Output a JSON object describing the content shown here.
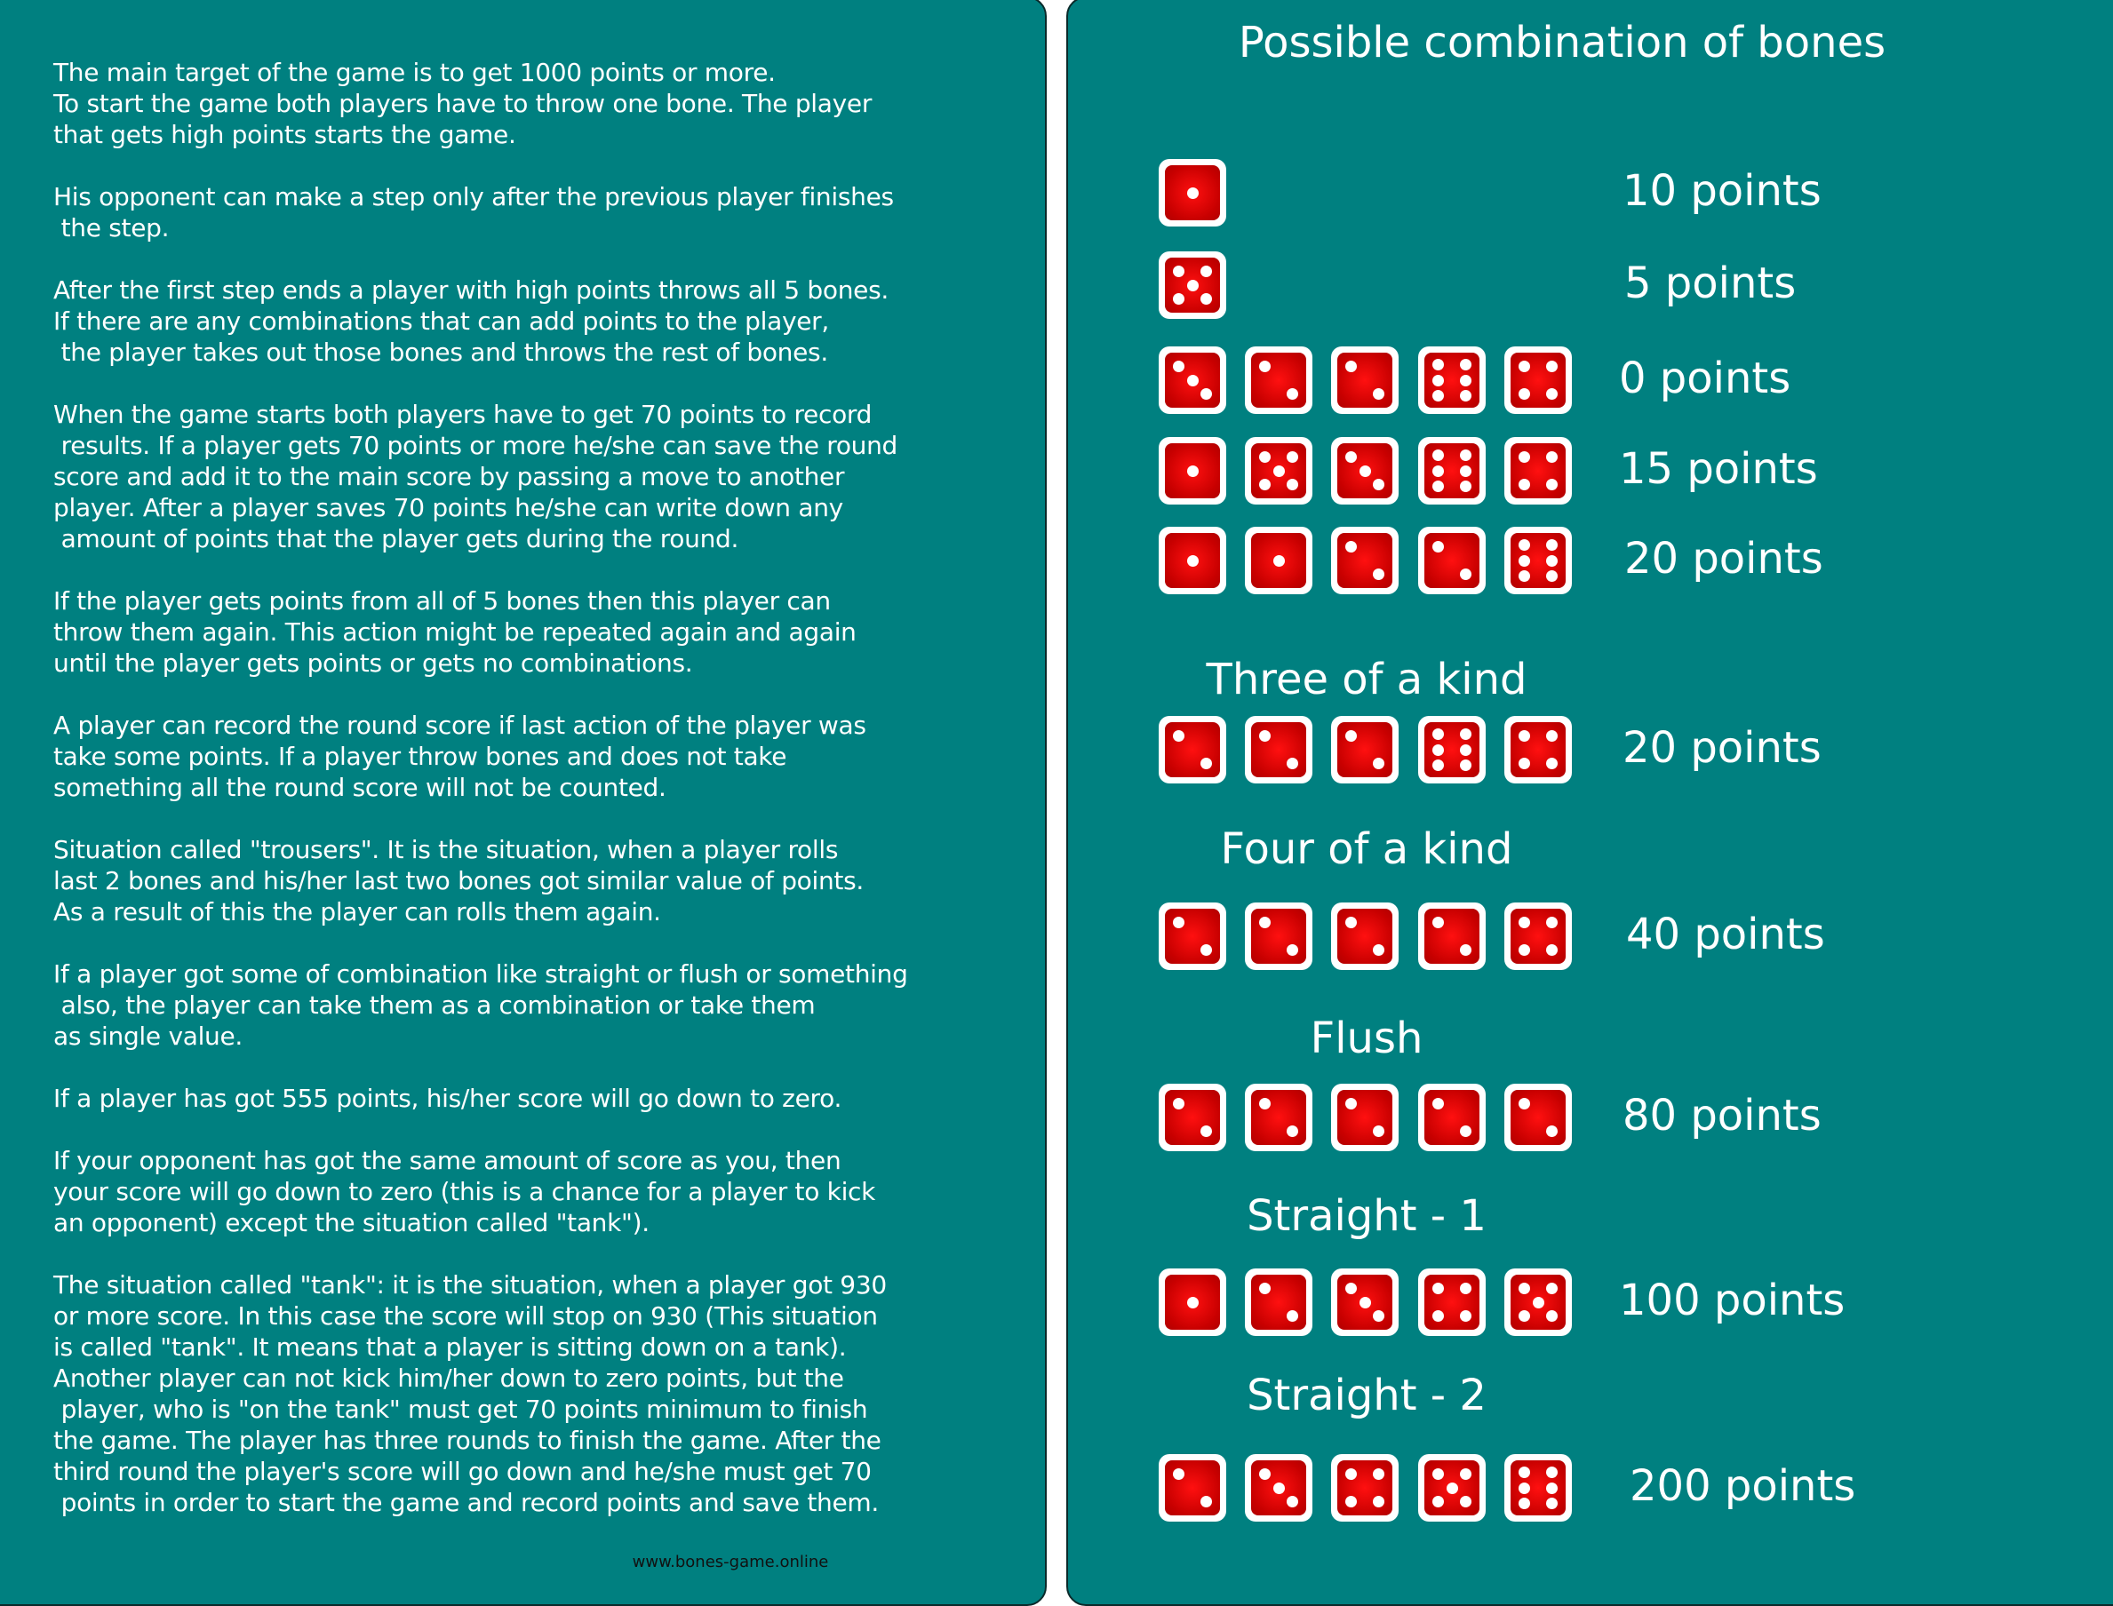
{
  "rules": {
    "paragraphs": [
      [
        "The main target of the game is to get 1000 points or more.",
        "To start the game both players have to throw one bone. The player",
        "that gets high points starts the game."
      ],
      [
        "His opponent can make a step only after the previous player finishes",
        " the step."
      ],
      [
        "After the first step ends a player with high points throws all 5 bones.",
        "If there are any combinations that can add points to the player,",
        " the player takes out those bones and throws the rest of bones."
      ],
      [
        "When the game starts both players have to get 70 points to record",
        " results. If a player gets 70 points or more he/she can save the round",
        "score and add it to the main score by passing a move to another",
        "player. After a player saves 70 points he/she can write down any",
        " amount of points that the player gets during the round."
      ],
      [
        "If the player gets points from all of 5 bones then this player can",
        "throw them again. This action might be repeated again and again",
        "until the player gets points or gets no combinations."
      ],
      [
        "A player can record the round score if last action of the player was",
        "take some points. If a player throw bones and does not take",
        "something all the round score will not be counted."
      ],
      [
        "Situation called \"trousers\". It is the situation, when a player rolls",
        "last 2 bones and his/her last two bones got similar value of points.",
        "As a result of this the player can rolls them again."
      ],
      [
        "If a player got some of combination like straight or flush or something",
        " also, the player can take them as a combination or take them",
        "as single value."
      ],
      [
        "If a player has got 555 points, his/her score will go down to zero."
      ],
      [
        "If your opponent has got the same amount of score as you, then",
        "your score will go down to zero (this is a chance for a player to kick",
        "an opponent) except the situation called \"tank\")."
      ],
      [
        "The situation called \"tank\": it is the situation, when a player got 930",
        "or more score. In this case the score will stop on 930 (This situation",
        "is called \"tank\". It means that a player is sitting down on a tank).",
        "Another player can not kick him/her down to zero points, but the",
        " player, who is \"on the tank\" must get 70 points minimum to finish",
        "the game. The player has three rounds to finish the game. After the",
        "third round the player's score will go down and he/she must get 70",
        " points in order to start the game and record points and save them."
      ]
    ],
    "website": "www.bones-game.online"
  },
  "combinations": {
    "title": "Possible combination of bones",
    "rows": [
      {
        "heading": "",
        "dice": [
          1
        ],
        "points": "10 points"
      },
      {
        "heading": "",
        "dice": [
          5
        ],
        "points": "5 points"
      },
      {
        "heading": "",
        "dice": [
          3,
          2,
          2,
          6,
          4
        ],
        "points": "0 points"
      },
      {
        "heading": "",
        "dice": [
          1,
          5,
          3,
          6,
          4
        ],
        "points": "15 points"
      },
      {
        "heading": "",
        "dice": [
          1,
          1,
          2,
          2,
          6
        ],
        "points": "20 points"
      },
      {
        "heading": "Three of a kind",
        "dice": [
          2,
          2,
          2,
          6,
          4
        ],
        "points": "20 points"
      },
      {
        "heading": "Four of a kind",
        "dice": [
          2,
          2,
          2,
          2,
          4
        ],
        "points": "40 points"
      },
      {
        "heading": "Flush",
        "dice": [
          2,
          2,
          2,
          2,
          2
        ],
        "points": "80 points"
      },
      {
        "heading": "Straight - 1",
        "dice": [
          1,
          2,
          3,
          4,
          5
        ],
        "points": "100 points"
      },
      {
        "heading": "Straight - 2",
        "dice": [
          2,
          3,
          4,
          5,
          6
        ],
        "points": "200 points"
      }
    ]
  },
  "colors": {
    "background": "#008080",
    "die": "#d00000",
    "pip": "#ffffff"
  }
}
